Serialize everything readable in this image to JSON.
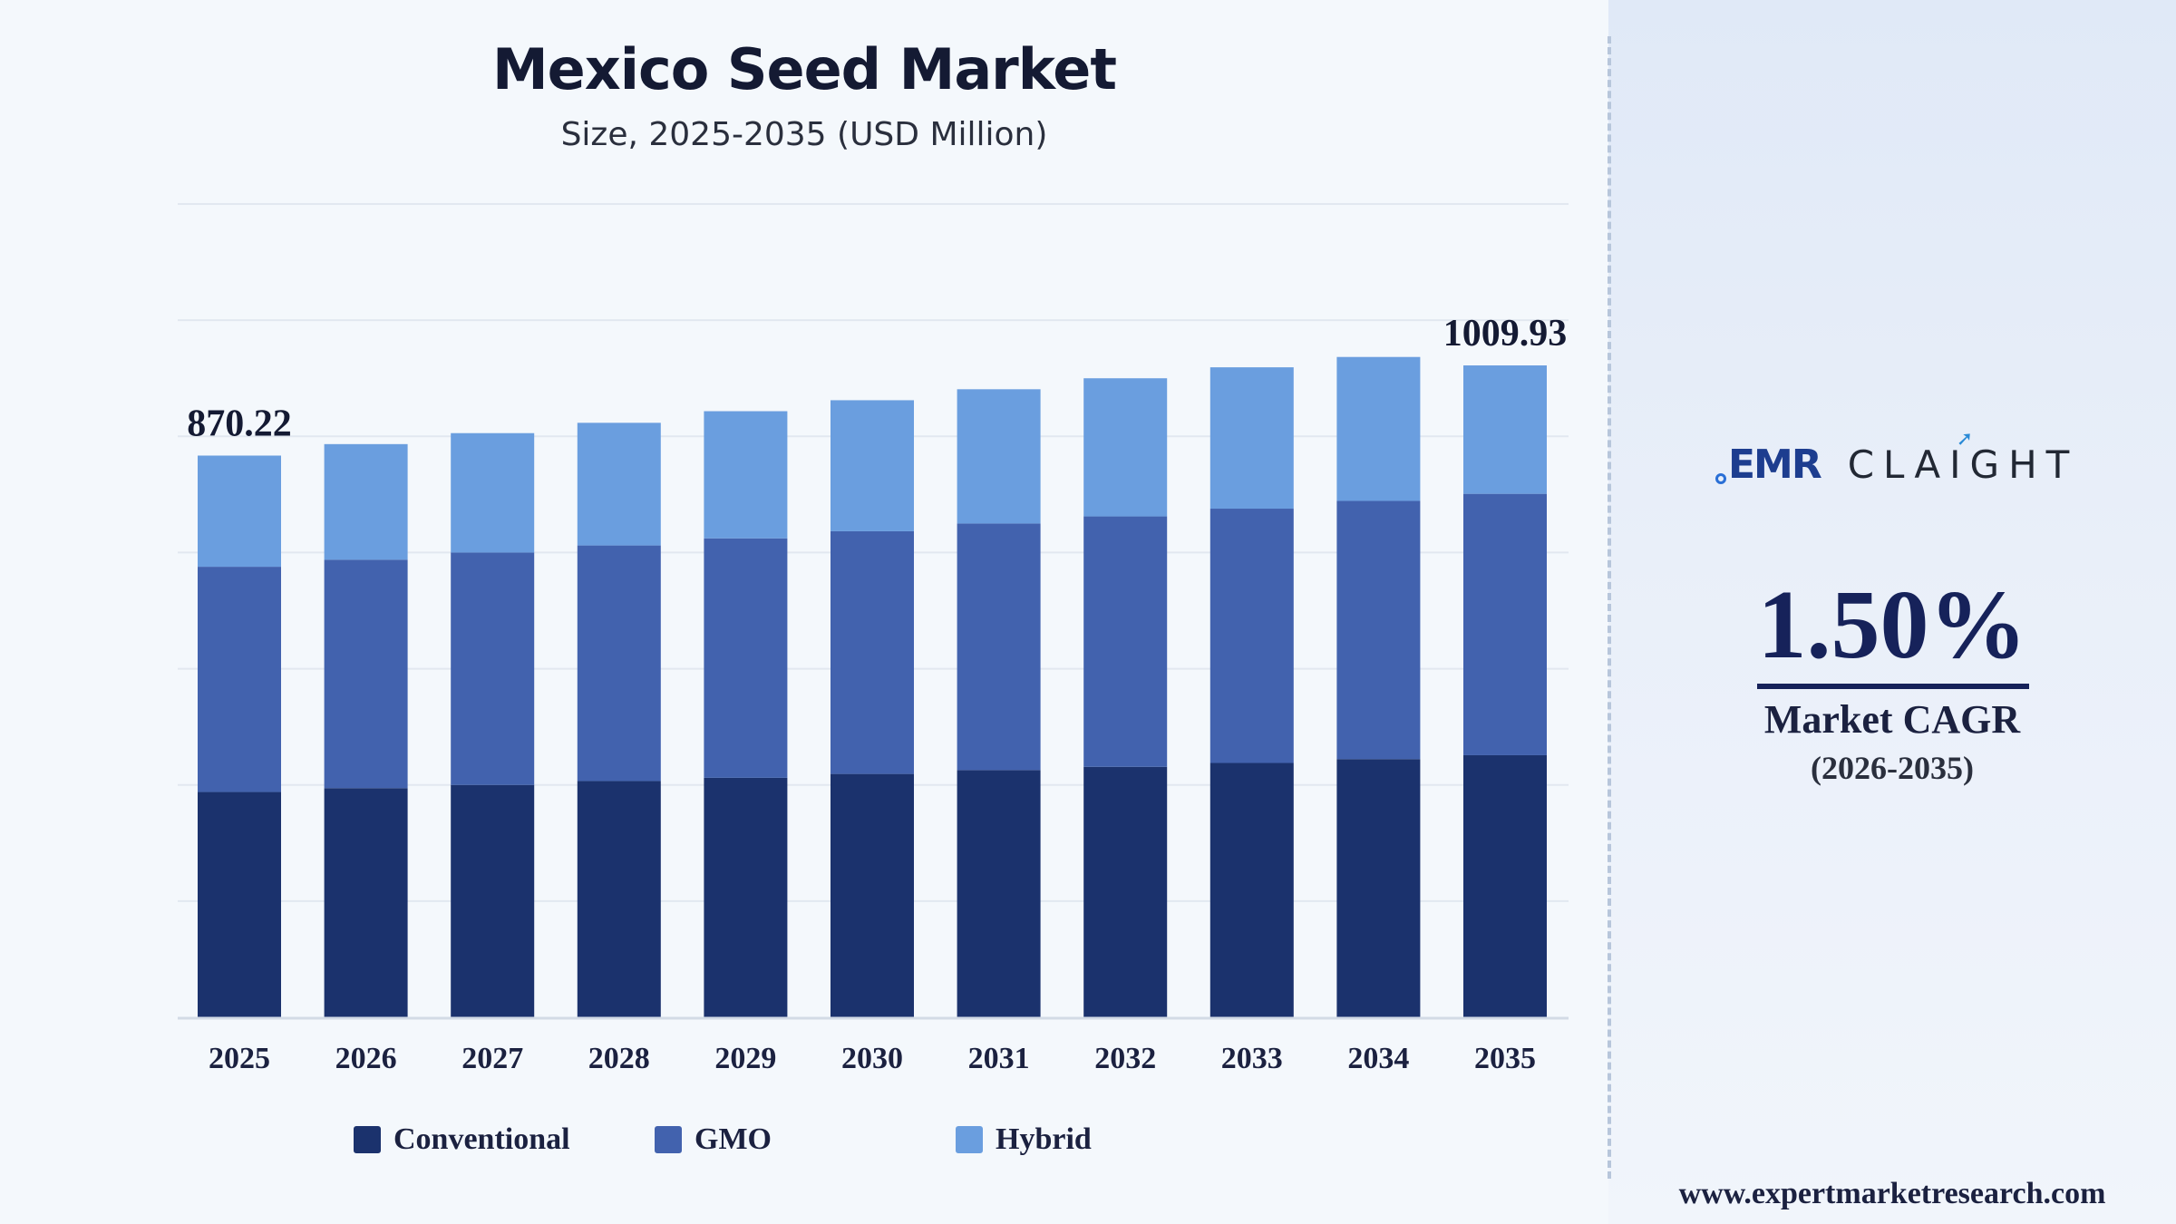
{
  "chart_data": {
    "type": "bar",
    "stacked": true,
    "title": "Mexico Seed Market",
    "subtitle": "Size, 2025-2035 (USD Million)",
    "xlabel": "",
    "ylabel": "",
    "ylim": [
      0,
      1260
    ],
    "grid": true,
    "legend_position": "bottom",
    "categories": [
      "2025",
      "2026",
      "2027",
      "2028",
      "2029",
      "2030",
      "2031",
      "2032",
      "2033",
      "2034",
      "2035"
    ],
    "series": [
      {
        "name": "Conventional",
        "color": "#1b326d",
        "values": [
          349,
          355,
          360,
          366,
          371,
          377,
          383,
          388,
          394,
          400,
          406
        ]
      },
      {
        "name": "GMO",
        "color": "#4262ae",
        "values": [
          349,
          354,
          360,
          365,
          371,
          376,
          382,
          388,
          394,
          400,
          405
        ]
      },
      {
        "name": "Hybrid",
        "color": "#6a9edf",
        "values": [
          172.22,
          179,
          185,
          190,
          197,
          203,
          208,
          214,
          219,
          223,
          198.93
        ]
      }
    ],
    "totals": [
      870.22,
      888,
      905,
      921,
      939,
      956,
      973,
      990,
      1007,
      1023,
      1009.93
    ],
    "data_labels": [
      {
        "category": "2025",
        "text": "870.22"
      },
      {
        "category": "2035",
        "text": "1009.93"
      }
    ]
  },
  "legend": [
    {
      "label": "Conventional",
      "color": "#1b326d"
    },
    {
      "label": "GMO",
      "color": "#4262ae"
    },
    {
      "label": "Hybrid",
      "color": "#6a9edf"
    }
  ],
  "sidebar": {
    "logo_left": "EMR",
    "logo_right": "CLAIGHT",
    "cagr_value": "1.50%",
    "cagr_label": "Market CAGR",
    "cagr_period": "(2026-2035)",
    "website": "www.expertmarketresearch.com"
  }
}
